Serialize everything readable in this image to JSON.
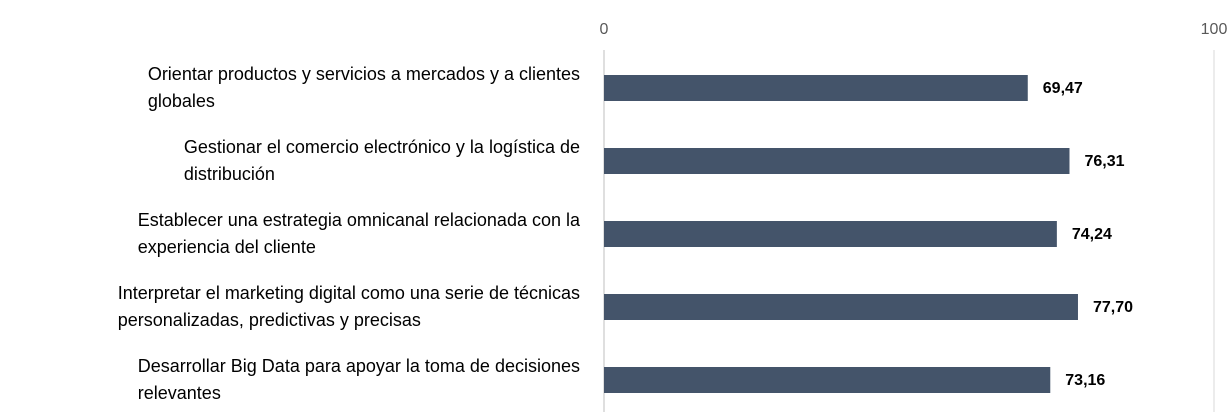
{
  "chart_data": {
    "type": "bar",
    "orientation": "horizontal",
    "categories": [
      "Orientar productos y servicios a mercados y a clientes\nglobales",
      "Gestionar el comercio electrónico y la logística de\ndistribución",
      "Establecer una estrategia omnicanal relacionada con la\nexperiencia del cliente",
      "Interpretar el marketing digital como una serie de técnicas\npersonalizadas, predictivas y precisas",
      "Desarrollar Big Data para apoyar la toma de decisiones\nrelevantes"
    ],
    "values": [
      69.47,
      76.31,
      74.24,
      77.7,
      73.16
    ],
    "value_labels": [
      "69,47",
      "76,31",
      "74,24",
      "77,70",
      "73,16"
    ],
    "color": "#44546a",
    "xlim": [
      0,
      100
    ],
    "xticks": [
      0,
      100
    ],
    "grid": true
  }
}
